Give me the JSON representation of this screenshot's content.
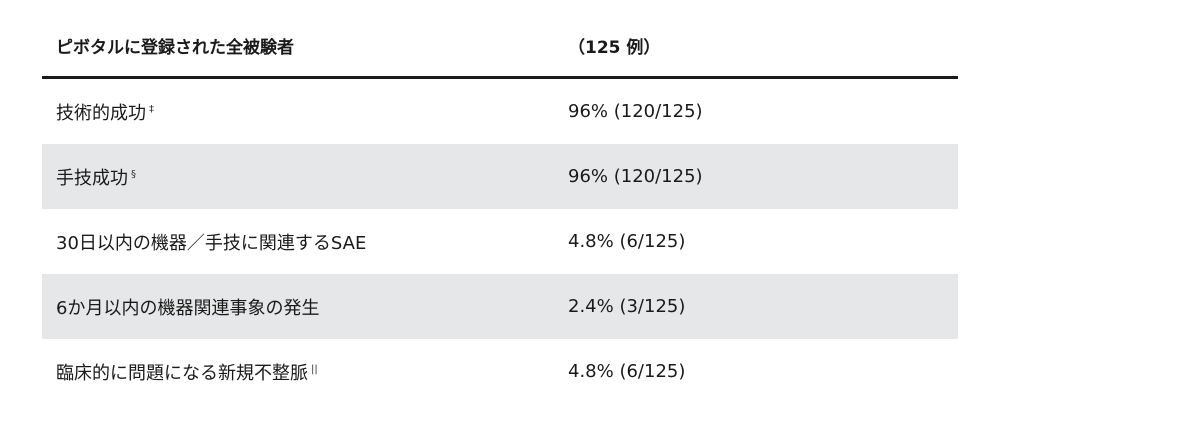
{
  "table": {
    "header": {
      "label": "ピボタルに登録された全被験者",
      "value": "（125 例）"
    },
    "rows": [
      {
        "label": "技術的成功",
        "mark": "‡",
        "value": "96% (120/125)"
      },
      {
        "label": "手技成功",
        "mark": "§",
        "value": "96% (120/125)"
      },
      {
        "label": "30日以内の機器／手技に関連するSAE",
        "mark": "",
        "value": "4.8% (6/125)"
      },
      {
        "label": "6か月以内の機器関連事象の発生",
        "mark": "",
        "value": "2.4% (3/125)"
      },
      {
        "label": "臨床的に問題になる新規不整脈",
        "mark": "||",
        "value": "4.8% (6/125)"
      }
    ],
    "row_shading": [
      "#ffffff",
      "#e6e7e8"
    ]
  }
}
